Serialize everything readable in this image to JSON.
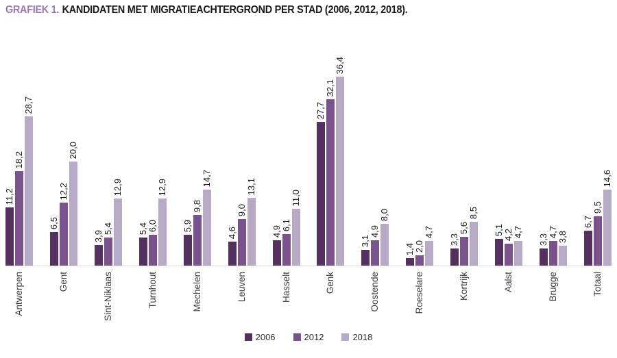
{
  "title": {
    "prefix": "GRAFIEK 1.",
    "text": "KANDIDATEN MET MIGRATIEACHTERGROND PER STAD (2006, 2012, 2018)."
  },
  "chart_data": {
    "type": "bar",
    "title": "GRAFIEK 1. KANDIDATEN MET MIGRATIEACHTERGROND PER STAD (2006, 2012, 2018).",
    "xlabel": "",
    "ylabel": "",
    "ylim": [
      0,
      40
    ],
    "grid": false,
    "y_axis_shown": false,
    "legend_position": "bottom",
    "bar_label_rotation_deg": 90,
    "category_label_rotation_deg": 90,
    "categories": [
      "Antwerpen",
      "Gent",
      "Sint-Niklaas",
      "Turnhout",
      "Mechelen",
      "Leuven",
      "Hasselt",
      "Genk",
      "Oostende",
      "Roeselare",
      "Kortrijk",
      "Aalst",
      "Brugge",
      "Totaal"
    ],
    "series": [
      {
        "name": "2006",
        "color": "#54315e",
        "values": [
          11.2,
          6.5,
          3.9,
          5.4,
          5.9,
          4.6,
          4.9,
          27.7,
          3.1,
          1.4,
          3.3,
          5.1,
          3.3,
          6.7
        ],
        "value_labels": [
          "11,2",
          "6,5",
          "3,9",
          "5,4",
          "5,9",
          "4,6",
          "4,9",
          "27,7",
          "3,1",
          "1,4",
          "3,3",
          "5,1",
          "3,3",
          "6,7"
        ]
      },
      {
        "name": "2012",
        "color": "#7a538d",
        "values": [
          18.2,
          12.2,
          5.4,
          6.0,
          9.8,
          9.0,
          6.1,
          32.1,
          4.9,
          2.0,
          5.6,
          4.2,
          4.7,
          9.5
        ],
        "value_labels": [
          "18,2",
          "12,2",
          "5,4",
          "6,0",
          "9,8",
          "9,0",
          "6,1",
          "32,1",
          "4,9",
          "2,0",
          "5,6",
          "4,2",
          "4,7",
          "9,5"
        ]
      },
      {
        "name": "2018",
        "color": "#b6aac6",
        "values": [
          28.7,
          20.0,
          12.9,
          12.9,
          14.7,
          13.1,
          11.0,
          36.4,
          8.0,
          4.7,
          8.5,
          4.7,
          3.8,
          14.6
        ],
        "value_labels": [
          "28,7",
          "20,0",
          "12,9",
          "12,9",
          "14,7",
          "13,1",
          "11,0",
          "36,4",
          "8,0",
          "4,7",
          "8,5",
          "4,7",
          "3,8",
          "14,6"
        ]
      }
    ]
  }
}
